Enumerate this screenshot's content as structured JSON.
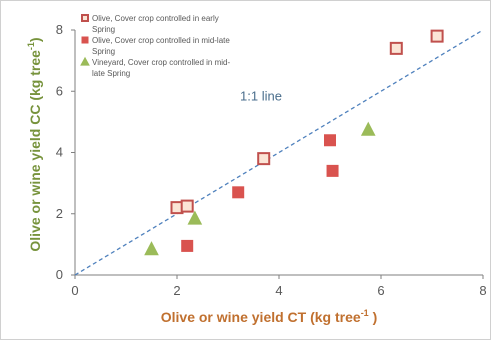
{
  "chart_data": {
    "type": "scatter",
    "xlabel": {
      "main": "Olive or wine yield CT (kg tree",
      "sup": "-1",
      "tail": " )"
    },
    "ylabel": {
      "main": "Olive or wine yield CC (kg tree",
      "sup": "-1",
      "tail": ")"
    },
    "xlim": [
      0,
      8
    ],
    "ylim": [
      0,
      8
    ],
    "x_ticks": [
      "0",
      "2",
      "4",
      "6",
      "8"
    ],
    "y_ticks": [
      "0",
      "2",
      "4",
      "6",
      "8"
    ],
    "grid": false,
    "legend_position": "top-left",
    "series": [
      {
        "name": "Olive, Cover crop controlled in early Spring",
        "legend_lines": [
          "Olive, Cover crop controlled in early",
          "Spring"
        ],
        "marker": "hollow-square",
        "fill": "#fbe5d6",
        "stroke": "#c0504d",
        "points": [
          [
            2.0,
            2.2
          ],
          [
            2.2,
            2.25
          ],
          [
            3.7,
            3.8
          ],
          [
            6.3,
            7.4
          ],
          [
            7.1,
            7.8
          ]
        ]
      },
      {
        "name": "Olive, Cover crop controlled in mid-late Spring",
        "legend_lines": [
          "Olive, Cover crop controlled in mid-late",
          "Spring"
        ],
        "marker": "square",
        "fill": "#d9534f",
        "stroke": "#d9534f",
        "points": [
          [
            2.2,
            0.95
          ],
          [
            3.2,
            2.7
          ],
          [
            5.0,
            4.4
          ],
          [
            5.05,
            3.4
          ]
        ]
      },
      {
        "name": "Vineyard, Cover crop controlled in mid-late Spring",
        "legend_lines": [
          "Vineyard, Cover crop controlled in mid-",
          "late Spring"
        ],
        "marker": "triangle",
        "fill": "#9bbb59",
        "stroke": "#9bbb59",
        "points": [
          [
            1.5,
            0.85
          ],
          [
            2.35,
            1.85
          ],
          [
            5.75,
            4.75
          ]
        ]
      }
    ],
    "reference_line": {
      "label": "1:1 line",
      "from": [
        0,
        0
      ],
      "to": [
        8,
        8
      ],
      "color": "#4f81bd",
      "style": "dashed"
    },
    "colors": {
      "x_title": "#c0702f",
      "y_title": "#77933c",
      "axis": "#7f7f7f"
    }
  }
}
